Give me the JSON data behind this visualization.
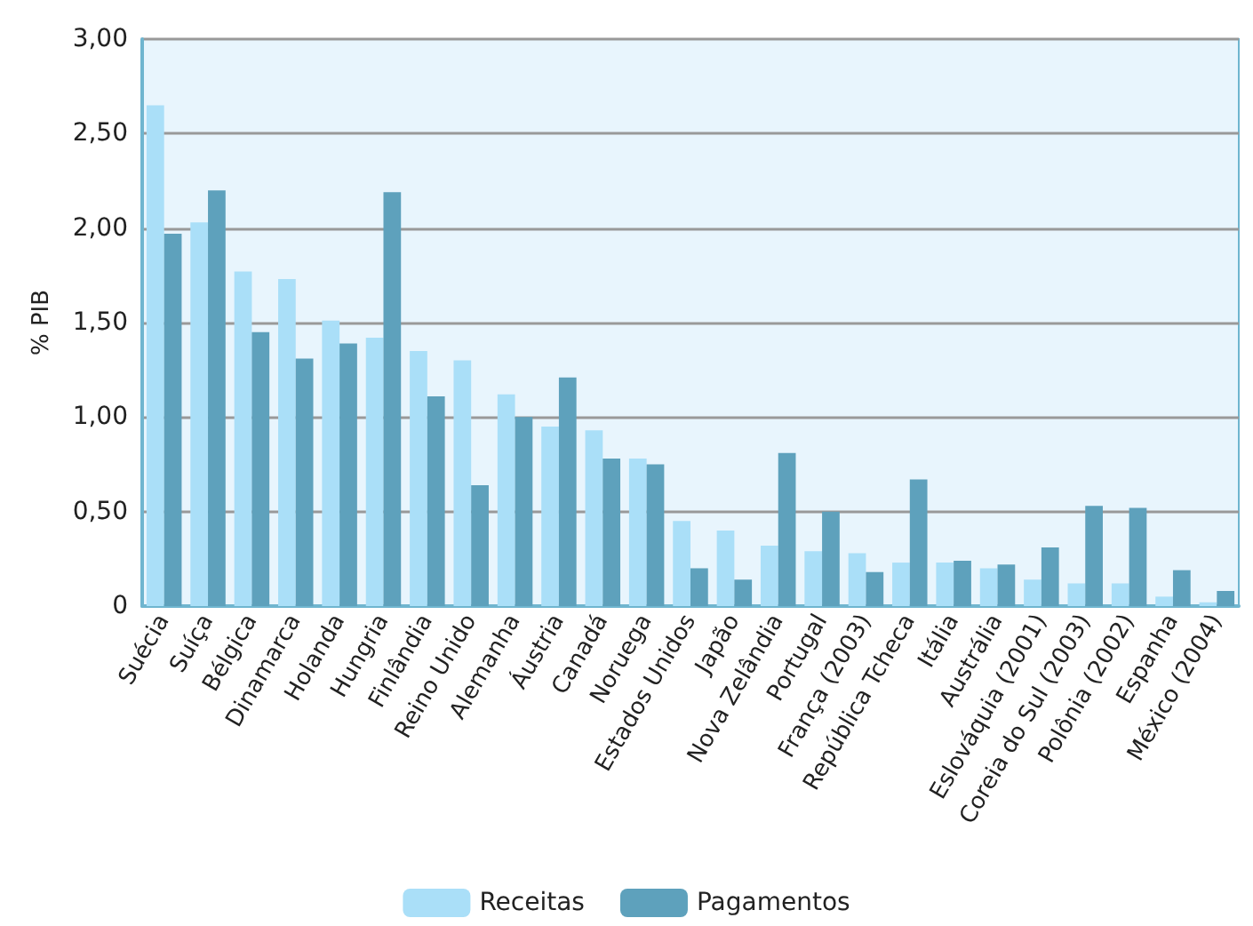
{
  "chart_data": {
    "type": "bar",
    "ylabel": "% PIB",
    "categories": [
      "Suécia",
      "Suíça",
      "Bélgica",
      "Dinamarca",
      "Holanda",
      "Hungria",
      "Finlândia",
      "Reino Unido",
      "Alemanha",
      "Áustria",
      "Canadá",
      "Noruega",
      "Estados Unidos",
      "Japão",
      "Nova Zelândia",
      "Portugal",
      "França (2003)",
      "República Tcheca",
      "Itália",
      "Austrália",
      "Eslováquia (2001)",
      "Coreia do Sul (2003)",
      "Polônia (2002)",
      "Espanha",
      "México (2004)"
    ],
    "series": [
      {
        "name": "Receitas",
        "color": "#aadff8",
        "values": [
          2.65,
          2.03,
          1.77,
          1.73,
          1.51,
          1.42,
          1.35,
          1.3,
          1.12,
          0.95,
          0.93,
          0.78,
          0.45,
          0.4,
          0.32,
          0.29,
          0.28,
          0.23,
          0.23,
          0.2,
          0.14,
          0.12,
          0.12,
          0.05,
          0.02
        ]
      },
      {
        "name": "Pagamentos",
        "color": "#5ea1bc",
        "values": [
          1.97,
          2.2,
          1.45,
          1.31,
          1.39,
          2.19,
          1.11,
          0.64,
          1.0,
          1.21,
          0.78,
          0.75,
          0.2,
          0.14,
          0.81,
          0.5,
          0.18,
          0.67,
          0.24,
          0.22,
          0.31,
          0.53,
          0.52,
          0.19,
          0.08
        ]
      }
    ],
    "ylim": [
      0,
      3
    ],
    "yticks": [
      {
        "value": 0,
        "label": "0"
      },
      {
        "value": 0.5,
        "label": "0,50"
      },
      {
        "value": 1,
        "label": "1,00"
      },
      {
        "value": 1.5,
        "label": "1,50"
      },
      {
        "value": 2,
        "label": "2,00"
      },
      {
        "value": 2.5,
        "label": "2,50"
      },
      {
        "value": 3,
        "label": "3,00"
      }
    ],
    "grid": "y",
    "legend": "bottom"
  }
}
